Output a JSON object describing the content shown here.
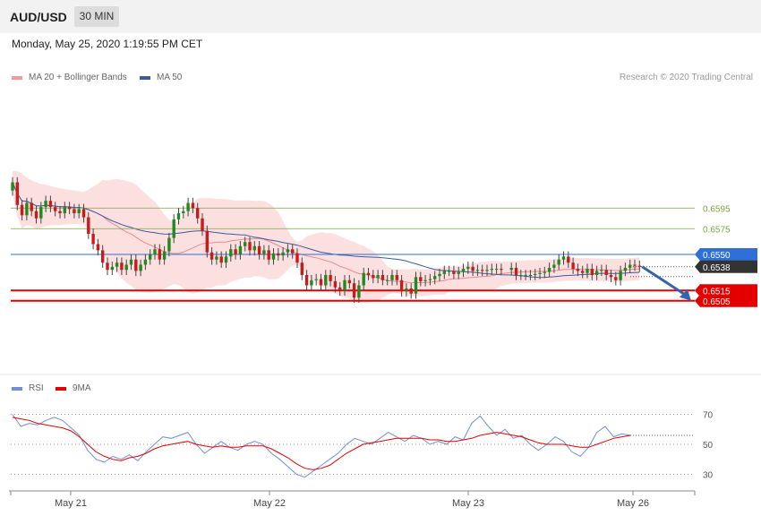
{
  "header": {
    "pair": "AUD/USD",
    "timeframe": "30 MIN",
    "datetime": "Monday, May 25, 2020 1:19:55 PM CET"
  },
  "legend": {
    "ma20": "MA 20 + Bollinger Bands",
    "ma50": "MA 50",
    "credit": "Research © 2020 Trading Central"
  },
  "rsi_legend": {
    "rsi": "RSI",
    "ma9": "9MA"
  },
  "colors": {
    "up": "#1f8a1f",
    "down": "#cc1a1a",
    "band": "#fbdada",
    "ma20": "#f08888",
    "ma50": "#3c5aa0",
    "support": "#e50000",
    "pivot": "#2e6fd8",
    "target": "#3563ab",
    "resistance": "#7aa540",
    "rsi": "#6f8fd6",
    "rsi_ma": "#e50000"
  },
  "chart_data": [
    {
      "type": "candlestick",
      "title": "AUD/USD 30 MIN",
      "x_ticks": [
        "May 21",
        "May 22",
        "May 23",
        "May 26"
      ],
      "levels": [
        {
          "value": 0.6595,
          "label": "0.6595",
          "kind": "resistance"
        },
        {
          "value": 0.6575,
          "label": "0.6575",
          "kind": "resistance"
        },
        {
          "value": 0.655,
          "label": "0.6550",
          "kind": "pivot"
        },
        {
          "value": 0.6538,
          "label": "0.6538",
          "kind": "last"
        },
        {
          "value": 0.6515,
          "label": "0.6515",
          "kind": "support"
        },
        {
          "value": 0.6505,
          "label": "0.6505",
          "kind": "support"
        }
      ],
      "forecast_arrow": {
        "from": 0.6538,
        "to": 0.6505,
        "direction": "down"
      },
      "price_path": [
        0.662,
        0.6598,
        0.6588,
        0.66,
        0.6592,
        0.6585,
        0.6596,
        0.6602,
        0.6596,
        0.6592,
        0.659,
        0.6596,
        0.6594,
        0.659,
        0.6594,
        0.6586,
        0.657,
        0.656,
        0.6554,
        0.6542,
        0.6535,
        0.6538,
        0.6542,
        0.6535,
        0.654,
        0.6545,
        0.6534,
        0.654,
        0.6545,
        0.655,
        0.6555,
        0.6545,
        0.6553,
        0.6566,
        0.6584,
        0.659,
        0.6592,
        0.66,
        0.6595,
        0.6585,
        0.6573,
        0.6552,
        0.6545,
        0.6548,
        0.6542,
        0.6548,
        0.6555,
        0.655,
        0.6558,
        0.6562,
        0.6554,
        0.6558,
        0.655,
        0.6554,
        0.6545,
        0.6551,
        0.6549,
        0.6552,
        0.6555,
        0.6551,
        0.6542,
        0.653,
        0.652,
        0.6525,
        0.6526,
        0.652,
        0.653,
        0.6524,
        0.6518,
        0.6515,
        0.6525,
        0.6522,
        0.6508,
        0.652,
        0.6532,
        0.653,
        0.6527,
        0.653,
        0.6525,
        0.6525,
        0.653,
        0.6525,
        0.6514,
        0.6517,
        0.6512,
        0.6528,
        0.6524,
        0.6525,
        0.6526,
        0.6529,
        0.6531,
        0.6534,
        0.6534,
        0.6531,
        0.6533,
        0.6536,
        0.6538,
        0.6534,
        0.6535,
        0.6534,
        0.6535,
        0.6536,
        0.6536,
        0.6535,
        0.6537,
        0.653,
        0.653,
        0.653,
        0.653,
        0.6531,
        0.6532,
        0.6533,
        0.6537,
        0.654,
        0.6545,
        0.6548,
        0.6542,
        0.6536,
        0.6534,
        0.6532,
        0.6536,
        0.653,
        0.6534,
        0.6535,
        0.653,
        0.6528,
        0.6525,
        0.6534,
        0.6537,
        0.654,
        0.6539,
        0.6538
      ],
      "rsi": {
        "levels": [
          70,
          50,
          30
        ],
        "values": [
          70,
          62,
          64,
          63,
          66,
          68,
          66,
          61,
          56,
          46,
          40,
          38,
          42,
          40,
          43,
          39,
          45,
          50,
          55,
          54,
          56,
          58,
          50,
          44,
          48,
          52,
          48,
          46,
          50,
          52,
          50,
          44,
          40,
          35,
          30,
          28,
          32,
          36,
          40,
          44,
          50,
          54,
          52,
          50,
          54,
          58,
          55,
          52,
          56,
          54,
          50,
          52,
          50,
          55,
          53,
          64,
          69,
          62,
          56,
          60,
          54,
          56,
          50,
          46,
          50,
          55,
          52,
          45,
          42,
          48,
          58,
          62,
          55,
          57,
          56
        ],
        "ma9": [
          68,
          67,
          66,
          64,
          63,
          62,
          61,
          59,
          55,
          50,
          45,
          42,
          40,
          39,
          41,
          42,
          44,
          47,
          49,
          50,
          51,
          52,
          50,
          49,
          48,
          49,
          48,
          48,
          49,
          49,
          49,
          47,
          44,
          41,
          37,
          34,
          33,
          34,
          36,
          40,
          44,
          47,
          50,
          51,
          52,
          53,
          54,
          54,
          54,
          54,
          53,
          53,
          52,
          52,
          53,
          54,
          56,
          57,
          58,
          57,
          56,
          55,
          53,
          51,
          50,
          50,
          50,
          49,
          48,
          48,
          50,
          52,
          54,
          55,
          56
        ]
      }
    }
  ]
}
